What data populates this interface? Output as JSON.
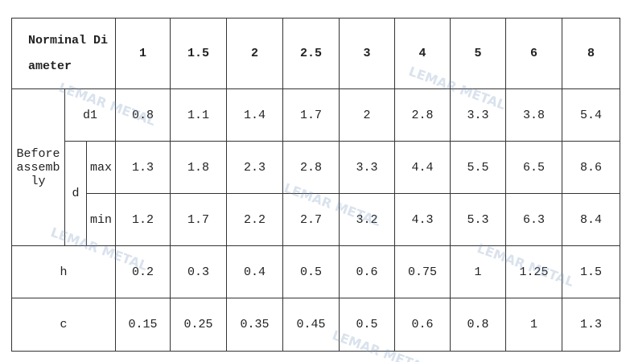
{
  "header": {
    "label": "Norminal Diameter",
    "sizes": [
      "1",
      "1.5",
      "2",
      "2.5",
      "3",
      "4",
      "5",
      "6",
      "8"
    ]
  },
  "rows": {
    "group_label": "Before assembly",
    "d1": {
      "label": "d1",
      "values": [
        "0.8",
        "1.1",
        "1.4",
        "1.7",
        "2",
        "2.8",
        "3.3",
        "3.8",
        "5.4"
      ]
    },
    "d": {
      "label": "d",
      "max": {
        "label": "max",
        "values": [
          "1.3",
          "1.8",
          "2.3",
          "2.8",
          "3.3",
          "4.4",
          "5.5",
          "6.5",
          "8.6"
        ]
      },
      "min": {
        "label": "min",
        "values": [
          "1.2",
          "1.7",
          "2.2",
          "2.7",
          "3.2",
          "4.3",
          "5.3",
          "6.3",
          "8.4"
        ]
      }
    },
    "h": {
      "label": "h",
      "values": [
        "0.2",
        "0.3",
        "0.4",
        "0.5",
        "0.6",
        "0.75",
        "1",
        "1.25",
        "1.5"
      ]
    },
    "c": {
      "label": "c",
      "values": [
        "0.15",
        "0.25",
        "0.35",
        "0.45",
        "0.5",
        "0.6",
        "0.8",
        "1",
        "1.3"
      ]
    }
  },
  "watermark": "LEMAR METAL"
}
